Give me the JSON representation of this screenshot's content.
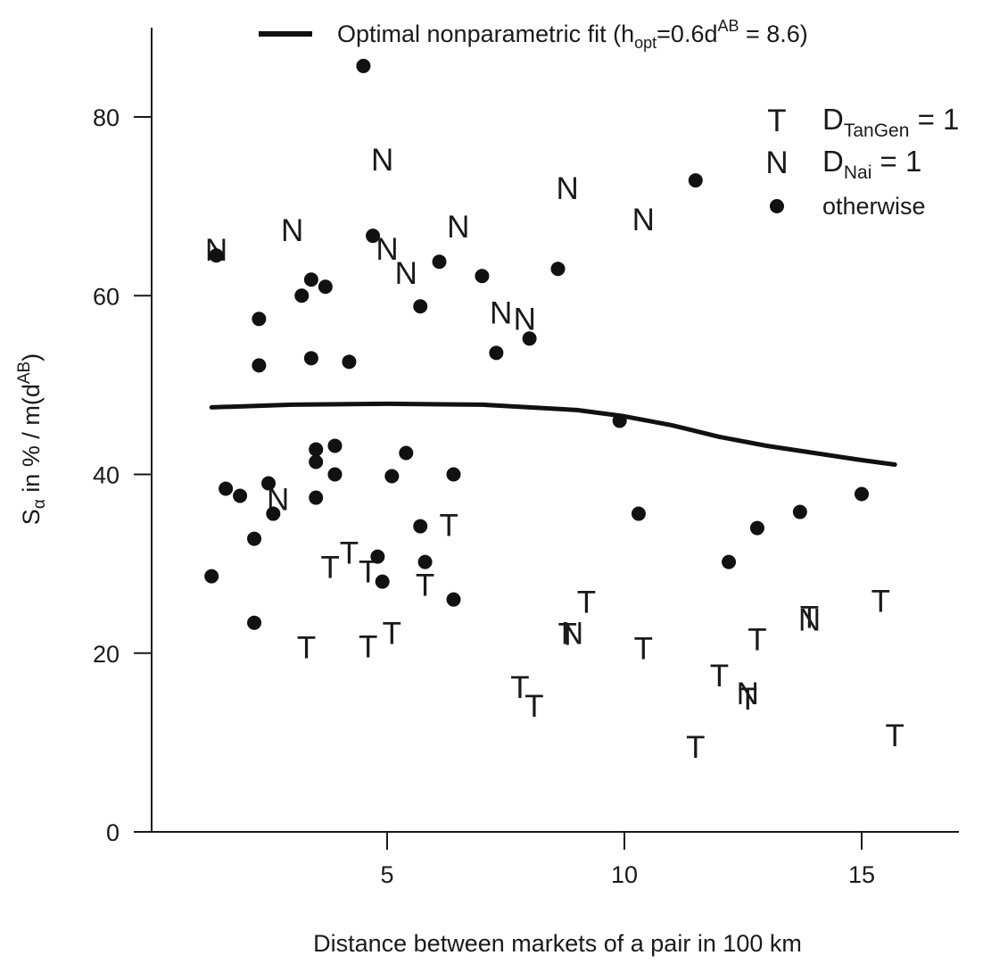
{
  "chart_data": {
    "type": "scatter",
    "xlabel": "Distance between markets of a pair in 100 km",
    "ylabel": {
      "main": "S",
      "sub": "α",
      "rest": " in %  /  m(d",
      "sup": "AB",
      "end": ")"
    },
    "xlim": [
      -0.2,
      17
    ],
    "ylim": [
      0,
      90
    ],
    "x_ticks": [
      5,
      10,
      15
    ],
    "y_ticks": [
      0,
      20,
      40,
      60,
      80
    ],
    "grid": false,
    "legend_placement": "top-right",
    "fit_legend": {
      "pre": "Optimal nonparametric fit (h",
      "sub": "opt",
      "mid": "=0.6d",
      "sup": "AB",
      "post": "  = 8.6)"
    },
    "legend": [
      {
        "symbol": "T",
        "label_main": "D",
        "label_sub": "TanGen",
        "label_rest": " = 1"
      },
      {
        "symbol": "N",
        "label_main": "D",
        "label_sub": "Nai",
        "label_rest": " = 1"
      },
      {
        "symbol": "dot",
        "label": "otherwise"
      }
    ],
    "fit_curve": {
      "x": [
        1.3,
        3,
        5,
        7,
        9,
        10,
        11,
        12,
        13,
        14,
        15,
        15.7
      ],
      "y": [
        47.5,
        47.8,
        47.9,
        47.8,
        47.2,
        46.5,
        45.5,
        44.2,
        43.2,
        42.4,
        41.6,
        41.1
      ]
    },
    "series": [
      {
        "symbol": "T",
        "points": [
          [
            3.3,
            20.7
          ],
          [
            3.8,
            29.7
          ],
          [
            4.2,
            31.3
          ],
          [
            4.6,
            29.2
          ],
          [
            4.6,
            20.8
          ],
          [
            5.1,
            22.3
          ],
          [
            5.8,
            27.7
          ],
          [
            6.3,
            34.4
          ],
          [
            7.8,
            16.3
          ],
          [
            8.1,
            14.2
          ],
          [
            8.8,
            22.2
          ],
          [
            9.2,
            25.8
          ],
          [
            10.4,
            20.6
          ],
          [
            11.5,
            9.6
          ],
          [
            12.0,
            17.6
          ],
          [
            12.6,
            15.0
          ],
          [
            12.8,
            21.6
          ],
          [
            13.9,
            24.1
          ],
          [
            15.4,
            25.9
          ],
          [
            15.7,
            10.9
          ]
        ]
      },
      {
        "symbol": "N",
        "points": [
          [
            1.4,
            65.2
          ],
          [
            3.0,
            67.4
          ],
          [
            4.9,
            75.3
          ],
          [
            5.0,
            65.3
          ],
          [
            5.4,
            62.6
          ],
          [
            6.5,
            67.8
          ],
          [
            7.4,
            58.2
          ],
          [
            7.9,
            57.5
          ],
          [
            8.8,
            72.1
          ],
          [
            10.4,
            68.6
          ],
          [
            2.7,
            37.3
          ],
          [
            8.9,
            22.3
          ],
          [
            12.6,
            15.6
          ],
          [
            13.9,
            23.8
          ]
        ]
      },
      {
        "symbol": "dot",
        "points": [
          [
            4.5,
            85.7
          ],
          [
            11.5,
            72.9
          ],
          [
            1.4,
            64.5
          ],
          [
            4.7,
            66.7
          ],
          [
            6.1,
            63.8
          ],
          [
            8.6,
            63.0
          ],
          [
            7.0,
            62.2
          ],
          [
            3.4,
            61.8
          ],
          [
            3.7,
            61.0
          ],
          [
            3.2,
            60.0
          ],
          [
            5.7,
            58.8
          ],
          [
            2.3,
            57.4
          ],
          [
            8.0,
            55.2
          ],
          [
            7.3,
            53.6
          ],
          [
            3.4,
            53.0
          ],
          [
            4.2,
            52.6
          ],
          [
            2.3,
            52.2
          ],
          [
            9.9,
            46.0
          ],
          [
            3.9,
            43.2
          ],
          [
            3.5,
            42.8
          ],
          [
            5.4,
            42.4
          ],
          [
            3.5,
            41.4
          ],
          [
            3.9,
            40.0
          ],
          [
            5.1,
            39.8
          ],
          [
            6.4,
            40.0
          ],
          [
            2.5,
            39.0
          ],
          [
            1.6,
            38.4
          ],
          [
            1.9,
            37.6
          ],
          [
            3.5,
            37.4
          ],
          [
            15.0,
            37.8
          ],
          [
            2.6,
            35.6
          ],
          [
            10.3,
            35.6
          ],
          [
            13.7,
            35.8
          ],
          [
            5.7,
            34.2
          ],
          [
            12.8,
            34.0
          ],
          [
            2.2,
            32.8
          ],
          [
            4.8,
            30.8
          ],
          [
            5.8,
            30.2
          ],
          [
            12.2,
            30.2
          ],
          [
            1.3,
            28.6
          ],
          [
            4.9,
            28.0
          ],
          [
            6.4,
            26.0
          ],
          [
            2.2,
            23.4
          ]
        ]
      }
    ]
  }
}
